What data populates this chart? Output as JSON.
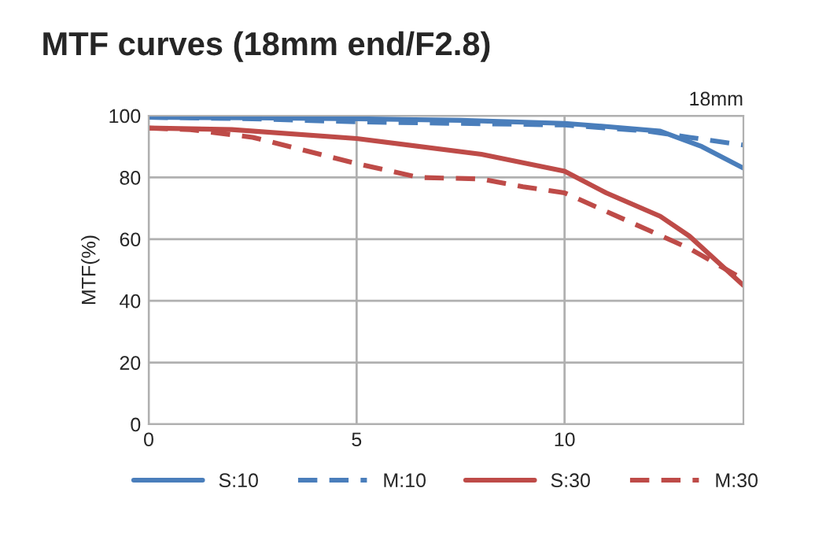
{
  "chart_data": {
    "type": "line",
    "title": "MTF curves (18mm end/F2.8)",
    "ylabel": "MTF(%)",
    "annotations": [
      "18mm"
    ],
    "xlim": [
      0,
      14.3
    ],
    "xticks": [
      0,
      5,
      10
    ],
    "ylim": [
      0,
      100
    ],
    "yticks": [
      0,
      20,
      40,
      60,
      80,
      100
    ],
    "grid": true,
    "legend": "bottom",
    "series": [
      {
        "name": "S:10",
        "color": "#4a7ebb",
        "line_style": "solid",
        "x": [
          0,
          2.5,
          5,
          7.5,
          10,
          11,
          12.3,
          13.3,
          14.3
        ],
        "values": [
          99.5,
          99.3,
          99,
          98.5,
          97.5,
          96.5,
          95,
          90,
          83
        ]
      },
      {
        "name": "M:10",
        "color": "#4a7ebb",
        "line_style": "dashed",
        "x": [
          0,
          2.5,
          5,
          7.5,
          10,
          11,
          12,
          13,
          14.3
        ],
        "values": [
          99.5,
          99,
          98,
          97.5,
          97,
          96,
          95,
          93,
          90.5
        ]
      },
      {
        "name": "S:30",
        "color": "#be4b48",
        "line_style": "solid",
        "x": [
          0,
          2,
          5,
          8,
          10,
          11,
          12.3,
          13,
          14.3
        ],
        "values": [
          96,
          95.5,
          92.6,
          87.5,
          82,
          75,
          67.4,
          61,
          45
        ]
      },
      {
        "name": "M:30",
        "color": "#be4b48",
        "line_style": "dashed",
        "x": [
          0,
          1,
          2.5,
          5,
          6.5,
          8,
          9,
          10,
          11,
          12,
          13,
          14.3
        ],
        "values": [
          96,
          95.5,
          93,
          84.5,
          80,
          79.5,
          77,
          75,
          69,
          63,
          57,
          47
        ]
      }
    ]
  }
}
